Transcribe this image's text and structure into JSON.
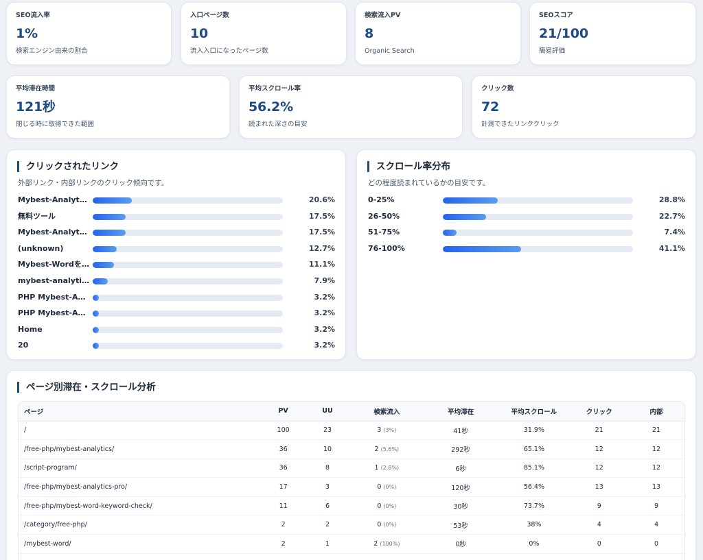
{
  "stats_top": [
    {
      "label": "SEO流入率",
      "value": "1%",
      "note": "検索エンジン由来の割合"
    },
    {
      "label": "入口ページ数",
      "value": "10",
      "note": "流入入口になったページ数"
    },
    {
      "label": "検索流入PV",
      "value": "8",
      "note": "Organic Search"
    },
    {
      "label": "SEOスコア",
      "value": "21/100",
      "note": "簡易評価"
    }
  ],
  "stats_mid": [
    {
      "label": "平均滞在時間",
      "value": "121秒",
      "note": "閉じる時に取得できた範囲"
    },
    {
      "label": "平均スクロール率",
      "value": "56.2%",
      "note": "読まれた深さの目安"
    },
    {
      "label": "クリック数",
      "value": "72",
      "note": "計測できたリンククリック"
    }
  ],
  "clicks_panel": {
    "title": "クリックされたリンク",
    "subtitle": "外部リンク・内部リンクのクリック傾向です。",
    "rows": [
      {
        "label": "Mybest-Analytics PRO",
        "pct": 20.6,
        "pct_text": "20.6%"
      },
      {
        "label": "無料ツール",
        "pct": 17.5,
        "pct_text": "17.5%"
      },
      {
        "label": "Mybest-Analytics",
        "pct": 17.5,
        "pct_text": "17.5%"
      },
      {
        "label": "(unknown)",
        "pct": 12.7,
        "pct_text": "12.7%"
      },
      {
        "label": "Mybest-Wordをダウンロード",
        "pct": 11.1,
        "pct_text": "11.1%"
      },
      {
        "label": "mybest-analytics",
        "pct": 7.9,
        "pct_text": "7.9%"
      },
      {
        "label": "PHP Mybest-Analytics",
        "pct": 3.2,
        "pct_text": "3.2%"
      },
      {
        "label": "PHP Mybest-Analytics PRO",
        "pct": 3.2,
        "pct_text": "3.2%"
      },
      {
        "label": "Home",
        "pct": 3.2,
        "pct_text": "3.2%"
      },
      {
        "label": "20",
        "pct": 3.2,
        "pct_text": "3.2%"
      }
    ]
  },
  "scroll_panel": {
    "title": "スクロール率分布",
    "subtitle": "どの程度読まれているかの目安です。",
    "rows": [
      {
        "label": "0-25%",
        "pct": 28.8,
        "pct_text": "28.8%"
      },
      {
        "label": "26-50%",
        "pct": 22.7,
        "pct_text": "22.7%"
      },
      {
        "label": "51-75%",
        "pct": 7.4,
        "pct_text": "7.4%"
      },
      {
        "label": "76-100%",
        "pct": 41.1,
        "pct_text": "41.1%"
      }
    ]
  },
  "pages_table": {
    "title": "ページ別滞在・スクロール分析",
    "headers": [
      "ページ",
      "PV",
      "UU",
      "検索流入",
      "平均滞在",
      "平均スクロール",
      "クリック",
      "内部"
    ],
    "rows": [
      {
        "page": "/",
        "pv": "100",
        "uu": "23",
        "search": "3",
        "search_pct": "(3%)",
        "dwell": "41秒",
        "scroll": "31.9%",
        "click": "21",
        "internal": "21"
      },
      {
        "page": "/free-php/mybest-analytics/",
        "pv": "36",
        "uu": "10",
        "search": "2",
        "search_pct": "(5.6%)",
        "dwell": "292秒",
        "scroll": "65.1%",
        "click": "12",
        "internal": "12"
      },
      {
        "page": "/script-program/",
        "pv": "36",
        "uu": "8",
        "search": "1",
        "search_pct": "(2.8%)",
        "dwell": "6秒",
        "scroll": "85.1%",
        "click": "12",
        "internal": "12"
      },
      {
        "page": "/free-php/mybest-analytics-pro/",
        "pv": "17",
        "uu": "3",
        "search": "0",
        "search_pct": "(0%)",
        "dwell": "120秒",
        "scroll": "56.4%",
        "click": "13",
        "internal": "13"
      },
      {
        "page": "/free-php/mybest-word-keyword-check/",
        "pv": "11",
        "uu": "6",
        "search": "0",
        "search_pct": "(0%)",
        "dwell": "30秒",
        "scroll": "73.7%",
        "click": "9",
        "internal": "9"
      },
      {
        "page": "/category/free-php/",
        "pv": "2",
        "uu": "2",
        "search": "0",
        "search_pct": "(0%)",
        "dwell": "53秒",
        "scroll": "38%",
        "click": "4",
        "internal": "4"
      },
      {
        "page": "/mybest-word/",
        "pv": "2",
        "uu": "1",
        "search": "2",
        "search_pct": "(100%)",
        "dwell": "0秒",
        "scroll": "0%",
        "click": "0",
        "internal": "0"
      }
    ]
  },
  "colors": {
    "accent": "#1e4a82",
    "bar_start": "#2563eb",
    "bar_end": "#5b9cf0",
    "track": "#e6ebf3"
  }
}
